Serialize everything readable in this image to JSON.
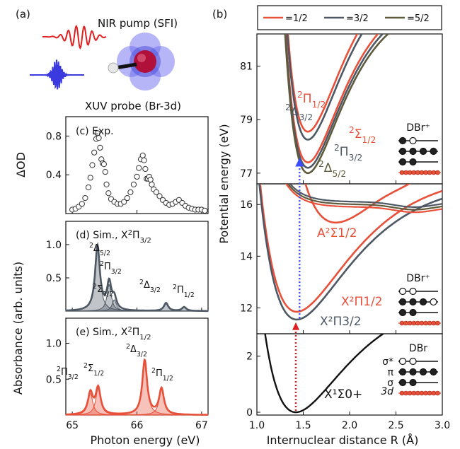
{
  "panel_labels": {
    "a": "(a)",
    "b": "(b)"
  },
  "legend": {
    "items": [
      {
        "label": "=1/2",
        "color": "#e8503a"
      },
      {
        "label": "=3/2",
        "color": "#4d5864"
      },
      {
        "label": "=5/2",
        "color": "#5e5a3c"
      }
    ]
  },
  "schematic": {
    "pump_label": "NIR pump (SFI)",
    "probe_label": "XUV probe (Br-3d)",
    "pump_color": "#e02020",
    "probe_color": "#3a3adf"
  },
  "colors": {
    "exp_marker": "#333333",
    "sim1": "#4d5864",
    "sim2": "#e8503a",
    "ground": "#111111",
    "arrow_red": "#e02020",
    "arrow_blue": "#3b4bff"
  },
  "chart_data": [
    {
      "type": "scatter",
      "panel": "(c) Exp.",
      "xlabel": "Photon energy (eV)",
      "ylabel": "ΔOD",
      "xlim": [
        64.9,
        67.1
      ],
      "ylim": [
        0,
        1.0
      ],
      "yticks": [
        "0.4",
        "0.8"
      ],
      "x": [
        65.0,
        65.05,
        65.1,
        65.15,
        65.2,
        65.25,
        65.28,
        65.31,
        65.34,
        65.37,
        65.39,
        65.41,
        65.43,
        65.45,
        65.47,
        65.49,
        65.51,
        65.53,
        65.56,
        65.6,
        65.65,
        65.7,
        65.75,
        65.8,
        65.85,
        65.9,
        65.95,
        66.0,
        66.03,
        66.06,
        66.09,
        66.11,
        66.13,
        66.15,
        66.17,
        66.19,
        66.21,
        66.23,
        66.26,
        66.3,
        66.35,
        66.4,
        66.45,
        66.5,
        66.55,
        66.6,
        66.65,
        66.7,
        66.75,
        66.8,
        66.85,
        66.9,
        66.95,
        67.0,
        67.05
      ],
      "y": [
        0.04,
        0.05,
        0.07,
        0.1,
        0.16,
        0.27,
        0.37,
        0.5,
        0.63,
        0.77,
        0.83,
        0.78,
        0.68,
        0.56,
        0.52,
        0.51,
        0.43,
        0.3,
        0.21,
        0.15,
        0.12,
        0.1,
        0.1,
        0.12,
        0.16,
        0.22,
        0.3,
        0.38,
        0.47,
        0.56,
        0.6,
        0.55,
        0.46,
        0.36,
        0.36,
        0.38,
        0.35,
        0.3,
        0.25,
        0.22,
        0.18,
        0.14,
        0.11,
        0.09,
        0.1,
        0.12,
        0.14,
        0.11,
        0.08,
        0.06,
        0.05,
        0.04,
        0.04,
        0.04,
        0.03
      ]
    },
    {
      "type": "area",
      "panel": "(d) Sim., X²Π3/2",
      "xlabel": "Photon energy (eV)",
      "ylabel": "Absorbance (arb. units)",
      "xlim": [
        64.9,
        67.1
      ],
      "ylim": [
        0,
        1.35
      ],
      "yticks": [
        "0.5",
        "1.0"
      ],
      "peaks": [
        {
          "state": "²Δ5/2",
          "center": 65.39,
          "height": 0.97,
          "width": 0.09
        },
        {
          "state": "²Π3/2",
          "center": 65.57,
          "height": 0.4,
          "width": 0.08
        },
        {
          "state": "²Σ1/2",
          "center": 65.65,
          "height": 0.17,
          "width": 0.08
        },
        {
          "state": "²Δ3/2",
          "center": 66.45,
          "height": 0.12,
          "width": 0.08
        },
        {
          "state": "²Π1/2",
          "center": 66.73,
          "height": 0.06,
          "width": 0.08
        }
      ]
    },
    {
      "type": "area",
      "panel": "(e) Sim., X²Π1/2",
      "xlabel": "Photon energy (eV)",
      "ylabel": "Absorbance (arb. units)",
      "xlim": [
        64.9,
        67.1
      ],
      "ylim": [
        0,
        1.35
      ],
      "yticks": [
        "0.5",
        "1.0"
      ],
      "xticks": [
        "65",
        "66",
        "67"
      ],
      "peaks": [
        {
          "state": "²Π3/2",
          "center": 65.28,
          "height": 0.3,
          "width": 0.09
        },
        {
          "state": "²Σ1/2",
          "center": 65.4,
          "height": 0.37,
          "width": 0.09
        },
        {
          "state": "²Δ3/2",
          "center": 66.12,
          "height": 0.76,
          "width": 0.09
        },
        {
          "state": "²Π1/2",
          "center": 66.38,
          "height": 0.36,
          "width": 0.09
        }
      ]
    },
    {
      "type": "line",
      "panel": "(b) upper",
      "xlabel": "Internuclear distance R (Å)",
      "ylabel": "Potential energy (eV)",
      "xlim": [
        1.0,
        3.0
      ],
      "ylim": [
        76.6,
        82.2
      ],
      "yticks": [
        "77",
        "79",
        "81"
      ],
      "series": [
        {
          "name": "²Π1/2",
          "omega": "1/2",
          "min_r": 1.55,
          "min_e": 78.55,
          "a": 4.5
        },
        {
          "name": "²Δ3/2",
          "omega": "3/2",
          "min_r": 1.55,
          "min_e": 78.25,
          "a": 4.5
        },
        {
          "name": "²Σ1/2",
          "omega": "1/2",
          "min_r": 1.55,
          "min_e": 77.4,
          "a": 4.0
        },
        {
          "name": "²Π3/2",
          "omega": "3/2",
          "min_r": 1.55,
          "min_e": 77.2,
          "a": 4.0
        },
        {
          "name": "²Δ5/2",
          "omega": "5/2",
          "min_r": 1.55,
          "min_e": 77.0,
          "a": 4.0
        }
      ],
      "config_label": "DBr⁺"
    },
    {
      "type": "line",
      "panel": "(b) middle",
      "xlim": [
        1.0,
        3.0
      ],
      "ylim": [
        11.0,
        16.8
      ],
      "yticks": [
        "12",
        "14",
        "16"
      ],
      "series": [
        {
          "name": "A²Σ1/2",
          "omega": "1/2",
          "min_r": 1.85,
          "min_e": 15.3
        },
        {
          "name": "X²Π1/2",
          "omega": "1/2",
          "min_r": 1.43,
          "min_e": 11.85
        },
        {
          "name": "X²Π3/2",
          "omega": "3/2",
          "min_r": 1.43,
          "min_e": 11.55
        }
      ],
      "config_label": "DBr⁺"
    },
    {
      "type": "line",
      "panel": "(b) lower",
      "xlim": [
        1.0,
        3.0
      ],
      "ylim": [
        -0.1,
        2.8
      ],
      "yticks": [
        "0",
        "2"
      ],
      "xticks": [
        "1.0",
        "1.5",
        "2.0",
        "2.5",
        "3.0"
      ],
      "series": [
        {
          "name": "X¹Σ0+",
          "min_r": 1.42,
          "min_e": 0.0
        }
      ],
      "config_label": "DBr",
      "orbital_labels": [
        "σ*",
        "π",
        "σ",
        "3d"
      ]
    }
  ],
  "annotations": {
    "c_title": "(c) Exp.",
    "d_title_main": "(d) Sim., X",
    "d_title_sup": "2",
    "d_title_sub": "Π",
    "d_title_sub2": "3/2",
    "e_title_main": "(e) Sim., X",
    "e_title_sup": "2",
    "e_title_sub": "Π",
    "e_title_sub2": "1/2",
    "left_xlabel": "Photon energy (eV)",
    "right_xlabel": "Internuclear distance R (Å)",
    "c_ylabel": "ΔOD",
    "de_ylabel": "Absorbance (arb. units)",
    "right_ylabel": "Potential energy (eV)"
  }
}
